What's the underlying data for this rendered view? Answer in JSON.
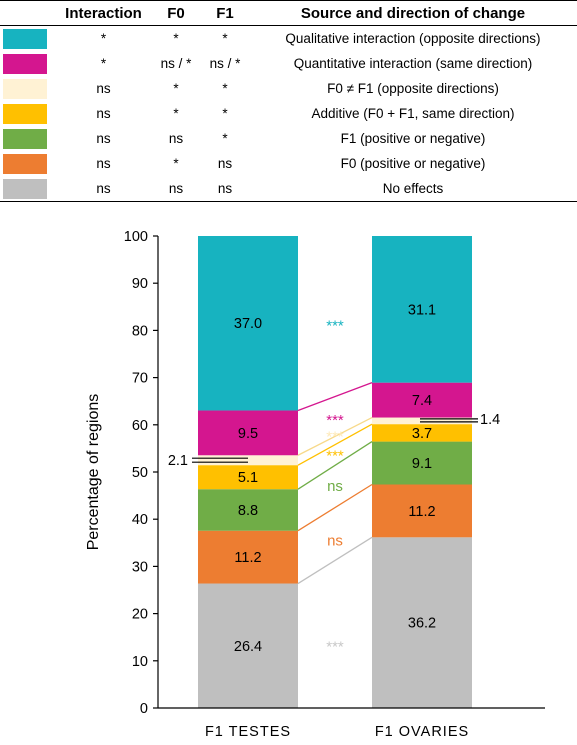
{
  "legend": {
    "headers": [
      "Interaction",
      "F0",
      "F1",
      "Source and direction of change"
    ],
    "rows": [
      {
        "color": "#17b3c0",
        "interaction": "*",
        "f0": "*",
        "f1": "*",
        "source": "Qualitative interaction (opposite directions)"
      },
      {
        "color": "#d4168f",
        "interaction": "*",
        "f0": "ns / *",
        "f1": "ns / *",
        "source": "Quantitative interaction (same direction)"
      },
      {
        "color": "#fff2d4",
        "interaction": "ns",
        "f0": "*",
        "f1": "*",
        "source": "F0 ≠ F1 (opposite directions)"
      },
      {
        "color": "#ffc000",
        "interaction": "ns",
        "f0": "*",
        "f1": "*",
        "source": "Additive (F0 + F1, same direction)"
      },
      {
        "color": "#70ad47",
        "interaction": "ns",
        "f0": "ns",
        "f1": "*",
        "source": "F1 (positive or negative)"
      },
      {
        "color": "#ed7d31",
        "interaction": "ns",
        "f0": "*",
        "f1": "ns",
        "source": "F0 (positive or negative)"
      },
      {
        "color": "#bfbfbf",
        "interaction": "ns",
        "f0": "ns",
        "f1": "ns",
        "source": "No effects"
      }
    ]
  },
  "chart_data": {
    "type": "bar",
    "stacked": true,
    "ylabel": "Percentage of regions",
    "ylim": [
      0,
      100
    ],
    "yticks": [
      0,
      10,
      20,
      30,
      40,
      50,
      60,
      70,
      80,
      90,
      100
    ],
    "categories": [
      "F1 TESTES",
      "F1 OVARIES"
    ],
    "series": [
      {
        "source": "No effects",
        "color": "#bfbfbf",
        "values": [
          26.4,
          36.2
        ],
        "labels": [
          "26.4",
          "36.2"
        ]
      },
      {
        "source": "F0 (positive or negative)",
        "color": "#ed7d31",
        "values": [
          11.2,
          11.2
        ],
        "labels": [
          "11.2",
          "11.2"
        ]
      },
      {
        "source": "F1 (positive or negative)",
        "color": "#70ad47",
        "values": [
          8.8,
          9.1
        ],
        "labels": [
          "8.8",
          "9.1"
        ]
      },
      {
        "source": "Additive (F0 + F1, same direction)",
        "color": "#ffc000",
        "values": [
          5.1,
          3.7
        ],
        "labels": [
          "5.1",
          "3.7"
        ]
      },
      {
        "source": "F0 ≠ F1 (opposite directions)",
        "color": "#fff2d4",
        "values": [
          2.1,
          1.4
        ],
        "labels": [
          "2.1",
          "1.4"
        ]
      },
      {
        "source": "Quantitative interaction (same direction)",
        "color": "#d4168f",
        "values": [
          9.5,
          7.4
        ],
        "labels": [
          "9.5",
          "7.4"
        ]
      },
      {
        "source": "Qualitative interaction (opposite directions)",
        "color": "#17b3c0",
        "values": [
          37.0,
          31.1
        ],
        "labels": [
          "37.0",
          "31.1"
        ]
      }
    ],
    "significance": [
      {
        "text": "***",
        "color": "#17b3c0",
        "y": 81
      },
      {
        "text": "***",
        "color": "#d4168f",
        "y": 61
      },
      {
        "text": "***",
        "color": "#fde9b8",
        "y": 57.5
      },
      {
        "text": "***",
        "color": "#ffc000",
        "y": 53.5
      },
      {
        "text": "ns",
        "color": "#70ad47",
        "y": 47
      },
      {
        "text": "ns",
        "color": "#ed7d31",
        "y": 35.5
      },
      {
        "text": "***",
        "color": "#c8c8c8",
        "y": 13
      }
    ]
  }
}
